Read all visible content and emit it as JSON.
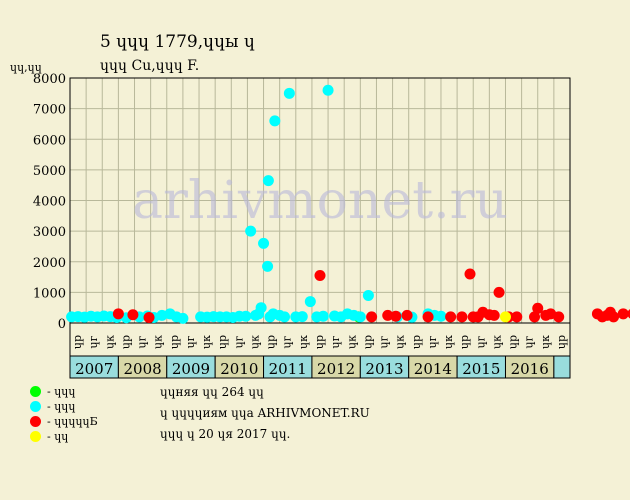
{
  "chart_data": {
    "type": "scatter",
    "title": "5 ɥɥɥ 1779,ɥɥы ɥ",
    "subtitle": "ɥɥɥ Cu,ɥɥɥ F.",
    "ylabel": "ɥɥ,ɥɥ",
    "ylim": [
      0,
      8000
    ],
    "y_ticks": [
      0,
      1000,
      2000,
      3000,
      4000,
      5000,
      6000,
      7000,
      8000
    ],
    "watermark": "arhivmonet.ru",
    "grid": true,
    "quarter_labels": [
      "ɥр",
      "ɥг",
      "ɥк"
    ],
    "years": [
      "2007",
      "2008",
      "2009",
      "2010",
      "2011",
      "2012",
      "2013",
      "2014",
      "2015",
      "2016"
    ],
    "series": [
      {
        "name": "- ɥɥɥ",
        "color": "#00ff00",
        "points": [
          {
            "x": 17.9,
            "y": 200
          }
        ]
      },
      {
        "name": "- ɥɥɥ",
        "color": "#00ffff",
        "points": [
          {
            "x": 0.1,
            "y": 200
          },
          {
            "x": 0.5,
            "y": 210
          },
          {
            "x": 0.9,
            "y": 190
          },
          {
            "x": 1.3,
            "y": 220
          },
          {
            "x": 1.7,
            "y": 200
          },
          {
            "x": 2.1,
            "y": 230
          },
          {
            "x": 2.5,
            "y": 210
          },
          {
            "x": 2.9,
            "y": 180
          },
          {
            "x": 3.5,
            "y": 170
          },
          {
            "x": 4.3,
            "y": 200
          },
          {
            "x": 4.8,
            "y": 230
          },
          {
            "x": 5.2,
            "y": 180
          },
          {
            "x": 5.7,
            "y": 250
          },
          {
            "x": 6.2,
            "y": 300
          },
          {
            "x": 6.6,
            "y": 200
          },
          {
            "x": 7.0,
            "y": 150
          },
          {
            "x": 8.1,
            "y": 200
          },
          {
            "x": 8.5,
            "y": 190
          },
          {
            "x": 8.9,
            "y": 210
          },
          {
            "x": 9.3,
            "y": 200
          },
          {
            "x": 9.7,
            "y": 200
          },
          {
            "x": 10.1,
            "y": 180
          },
          {
            "x": 10.5,
            "y": 220
          },
          {
            "x": 10.9,
            "y": 220
          },
          {
            "x": 11.2,
            "y": 3000
          },
          {
            "x": 11.5,
            "y": 250
          },
          {
            "x": 11.7,
            "y": 300
          },
          {
            "x": 11.85,
            "y": 500
          },
          {
            "x": 12.0,
            "y": 2600
          },
          {
            "x": 12.25,
            "y": 1850
          },
          {
            "x": 12.3,
            "y": 4650
          },
          {
            "x": 12.4,
            "y": 200
          },
          {
            "x": 12.6,
            "y": 300
          },
          {
            "x": 12.7,
            "y": 6600
          },
          {
            "x": 13.0,
            "y": 250
          },
          {
            "x": 13.3,
            "y": 200
          },
          {
            "x": 13.6,
            "y": 7500
          },
          {
            "x": 14.0,
            "y": 200
          },
          {
            "x": 14.4,
            "y": 210
          },
          {
            "x": 14.9,
            "y": 700
          },
          {
            "x": 15.3,
            "y": 200
          },
          {
            "x": 15.7,
            "y": 220
          },
          {
            "x": 16.0,
            "y": 7600
          },
          {
            "x": 16.4,
            "y": 230
          },
          {
            "x": 16.8,
            "y": 200
          },
          {
            "x": 17.2,
            "y": 300
          },
          {
            "x": 17.6,
            "y": 250
          },
          {
            "x": 18.0,
            "y": 200
          },
          {
            "x": 18.5,
            "y": 900
          },
          {
            "x": 20.3,
            "y": 200
          },
          {
            "x": 21.2,
            "y": 190
          },
          {
            "x": 22.2,
            "y": 300
          },
          {
            "x": 22.6,
            "y": 250
          },
          {
            "x": 23.0,
            "y": 220
          }
        ]
      },
      {
        "name": "- ɥɥɥɥɥБ",
        "color": "#ff0000",
        "points": [
          {
            "x": 3.0,
            "y": 300
          },
          {
            "x": 3.9,
            "y": 270
          },
          {
            "x": 4.9,
            "y": 180
          },
          {
            "x": 15.5,
            "y": 1550
          },
          {
            "x": 18.7,
            "y": 200
          },
          {
            "x": 19.7,
            "y": 250
          },
          {
            "x": 20.2,
            "y": 220
          },
          {
            "x": 20.9,
            "y": 250
          },
          {
            "x": 22.2,
            "y": 200
          },
          {
            "x": 23.6,
            "y": 200
          },
          {
            "x": 24.3,
            "y": 200
          },
          {
            "x": 24.8,
            "y": 1600
          },
          {
            "x": 25.0,
            "y": 200
          },
          {
            "x": 25.3,
            "y": 200
          },
          {
            "x": 25.6,
            "y": 350
          },
          {
            "x": 26.0,
            "y": 270
          },
          {
            "x": 26.3,
            "y": 250
          },
          {
            "x": 26.6,
            "y": 1000
          },
          {
            "x": 27.2,
            "y": 200
          },
          {
            "x": 27.7,
            "y": 200
          },
          {
            "x": 28.8,
            "y": 200
          },
          {
            "x": 29.0,
            "y": 480
          },
          {
            "x": 29.5,
            "y": 250
          },
          {
            "x": 29.8,
            "y": 300
          },
          {
            "x": 30.3,
            "y": 200
          },
          {
            "x": 32.7,
            "y": 300
          },
          {
            "x": 33.0,
            "y": 200
          },
          {
            "x": 33.3,
            "y": 250
          },
          {
            "x": 33.5,
            "y": 350
          },
          {
            "x": 33.7,
            "y": 200
          },
          {
            "x": 34.3,
            "y": 300
          },
          {
            "x": 34.9,
            "y": 300
          },
          {
            "x": 35.2,
            "y": 200
          },
          {
            "x": 36.5,
            "y": 230
          }
        ]
      },
      {
        "name": "- ɥɥ",
        "color": "#ffff00",
        "points": [
          {
            "x": 27.0,
            "y": 200
          }
        ]
      }
    ]
  },
  "notes": {
    "line1": "ɥɥняя ɥɥ 264 ɥɥ",
    "line2": "ɥ ɥɥɥɥиям ɥɥа ARHIVMONET.RU",
    "line3": "ɥɥɥ ɥ 20 ɥя 2017 ɥɥ."
  }
}
